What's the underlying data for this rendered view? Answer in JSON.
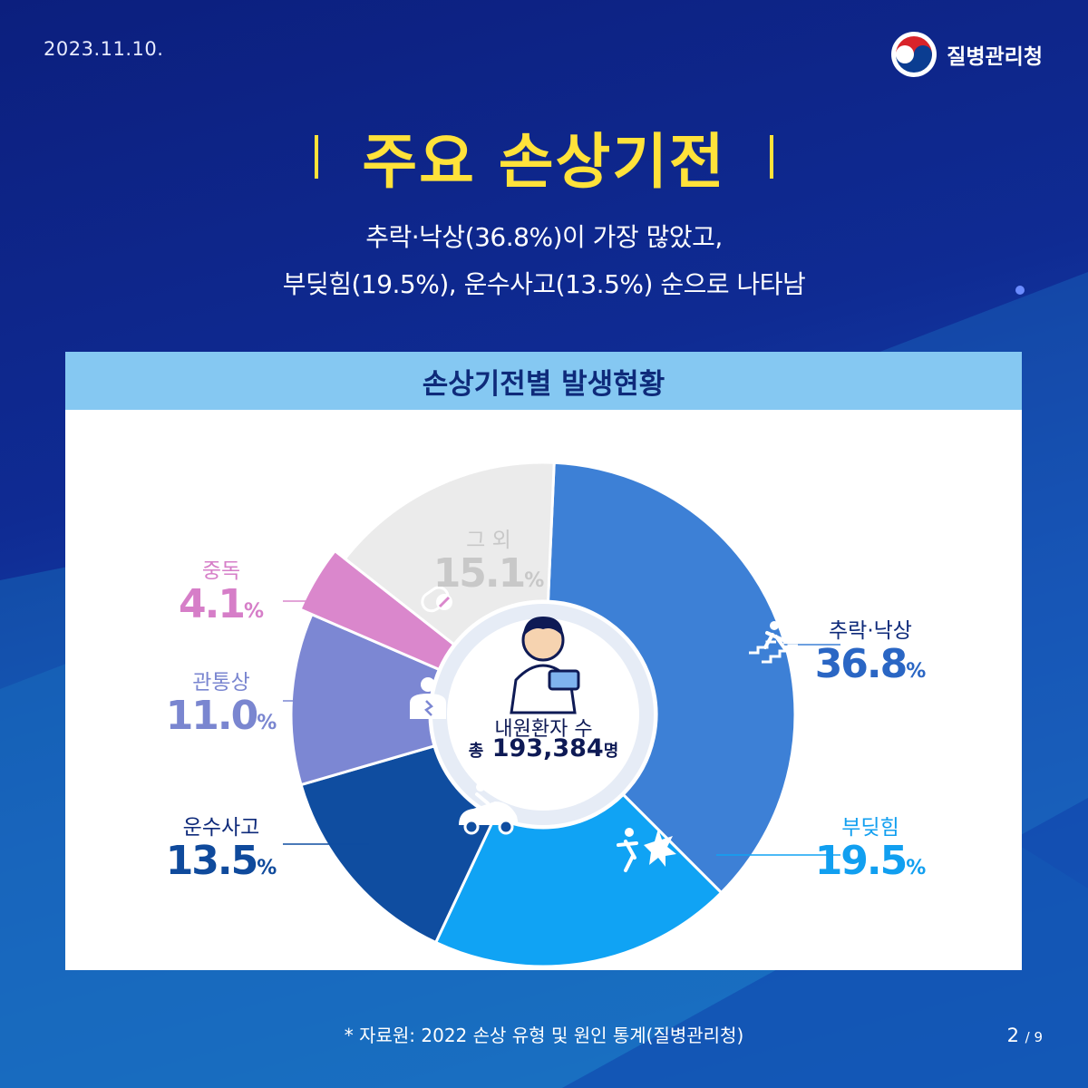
{
  "header": {
    "date": "2023.11.10.",
    "agency": "질병관리청",
    "title": "주요 손상기전",
    "subtitle_line1": "추락·낙상(36.8%)이 가장 많았고,",
    "subtitle_line2": "부딪힘(19.5%), 운수사고(13.5%) 순으로 나타남"
  },
  "colors": {
    "accent_yellow": "#ffe23a",
    "header_band": "#85c8f2"
  },
  "chart_data": {
    "type": "pie",
    "title": "손상기전별 발생현황",
    "unit": "%",
    "center_label": "내원환자 수",
    "center_prefix": "총",
    "center_value": "193,384",
    "center_unit": "명",
    "slices": [
      {
        "label": "추락·낙상",
        "value": 36.8,
        "value_text": "36.8",
        "color": "#3d80d6",
        "text_color": "#2a66c4",
        "icon": "falling-stairs-icon"
      },
      {
        "label": "부딪힘",
        "value": 19.5,
        "value_text": "19.5",
        "color": "#10a3f4",
        "text_color": "#119ff0",
        "icon": "collision-icon"
      },
      {
        "label": "운수사고",
        "value": 13.5,
        "value_text": "13.5",
        "color": "#0f4da0",
        "text_color": "#0f4a9c",
        "icon": "car-accident-icon"
      },
      {
        "label": "관통상",
        "value": 11.0,
        "value_text": "11.0",
        "color": "#7c87d3",
        "text_color": "#7a86d0",
        "icon": "penetrating-injury-icon"
      },
      {
        "label": "중독",
        "value": 4.1,
        "value_text": "4.1",
        "color": "#da87cc",
        "text_color": "#d67ec8",
        "icon": "poison-bottle-icon"
      },
      {
        "label": "그 외",
        "value": 15.1,
        "value_text": "15.1",
        "color": "#ebebeb",
        "text_color": "#c8c8c8",
        "icon": ""
      }
    ]
  },
  "footer": {
    "source": "* 자료원: 2022 손상 유형 및 원인 통계(질병관리청)",
    "page_current": "2",
    "page_total": "9"
  }
}
